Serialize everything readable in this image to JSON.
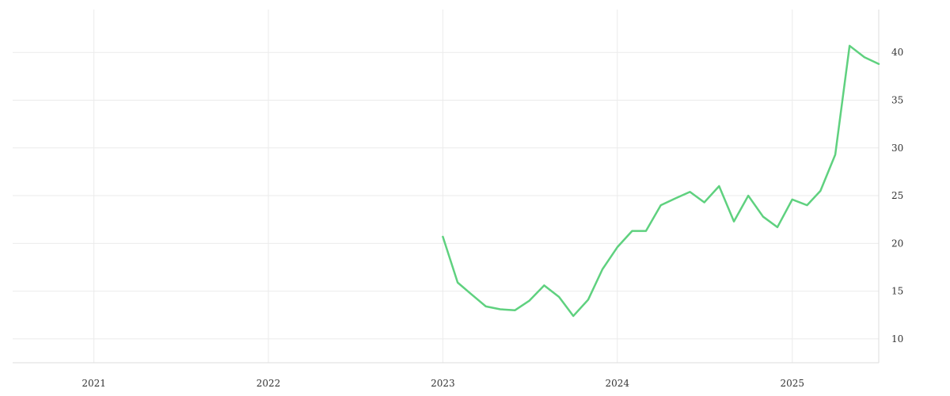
{
  "chart_data": {
    "type": "line",
    "title": "",
    "xlabel": "",
    "ylabel": "",
    "grid": true,
    "legend": "none",
    "y_axis_side": "right",
    "xlim": [
      "2020-07-15",
      "2025-07-01"
    ],
    "ylim": [
      7.5,
      44.5
    ],
    "x_ticks": [
      {
        "value": "2021-01-01",
        "label": "2021"
      },
      {
        "value": "2022-01-01",
        "label": "2022"
      },
      {
        "value": "2023-01-01",
        "label": "2023"
      },
      {
        "value": "2024-01-01",
        "label": "2024"
      },
      {
        "value": "2025-01-01",
        "label": "2025"
      }
    ],
    "y_ticks": [
      {
        "value": 10,
        "label": "10"
      },
      {
        "value": 15,
        "label": "15"
      },
      {
        "value": 20,
        "label": "20"
      },
      {
        "value": 25,
        "label": "25"
      },
      {
        "value": 30,
        "label": "30"
      },
      {
        "value": 35,
        "label": "35"
      },
      {
        "value": 40,
        "label": "40"
      }
    ],
    "series": [
      {
        "color": "#5fd17f",
        "points": [
          {
            "x": "2023-01-01",
            "y": 20.7
          },
          {
            "x": "2023-02-01",
            "y": 15.9
          },
          {
            "x": "2023-03-01",
            "y": 14.7
          },
          {
            "x": "2023-04-01",
            "y": 13.4
          },
          {
            "x": "2023-05-01",
            "y": 13.1
          },
          {
            "x": "2023-06-01",
            "y": 13.0
          },
          {
            "x": "2023-07-01",
            "y": 14.0
          },
          {
            "x": "2023-08-01",
            "y": 15.6
          },
          {
            "x": "2023-09-01",
            "y": 14.4
          },
          {
            "x": "2023-10-01",
            "y": 12.4
          },
          {
            "x": "2023-11-01",
            "y": 14.1
          },
          {
            "x": "2023-12-01",
            "y": 17.3
          },
          {
            "x": "2024-01-01",
            "y": 19.6
          },
          {
            "x": "2024-02-01",
            "y": 21.3
          },
          {
            "x": "2024-03-01",
            "y": 21.3
          },
          {
            "x": "2024-04-01",
            "y": 24.0
          },
          {
            "x": "2024-05-01",
            "y": 24.7
          },
          {
            "x": "2024-06-01",
            "y": 25.4
          },
          {
            "x": "2024-07-01",
            "y": 24.3
          },
          {
            "x": "2024-08-01",
            "y": 26.0
          },
          {
            "x": "2024-09-01",
            "y": 22.3
          },
          {
            "x": "2024-10-01",
            "y": 25.0
          },
          {
            "x": "2024-11-01",
            "y": 22.8
          },
          {
            "x": "2024-12-01",
            "y": 21.7
          },
          {
            "x": "2025-01-01",
            "y": 24.6
          },
          {
            "x": "2025-02-01",
            "y": 24.0
          },
          {
            "x": "2025-03-01",
            "y": 25.5
          },
          {
            "x": "2025-04-01",
            "y": 29.3
          },
          {
            "x": "2025-05-01",
            "y": 40.7
          },
          {
            "x": "2025-06-01",
            "y": 39.5
          },
          {
            "x": "2025-07-01",
            "y": 38.8
          }
        ]
      }
    ]
  }
}
